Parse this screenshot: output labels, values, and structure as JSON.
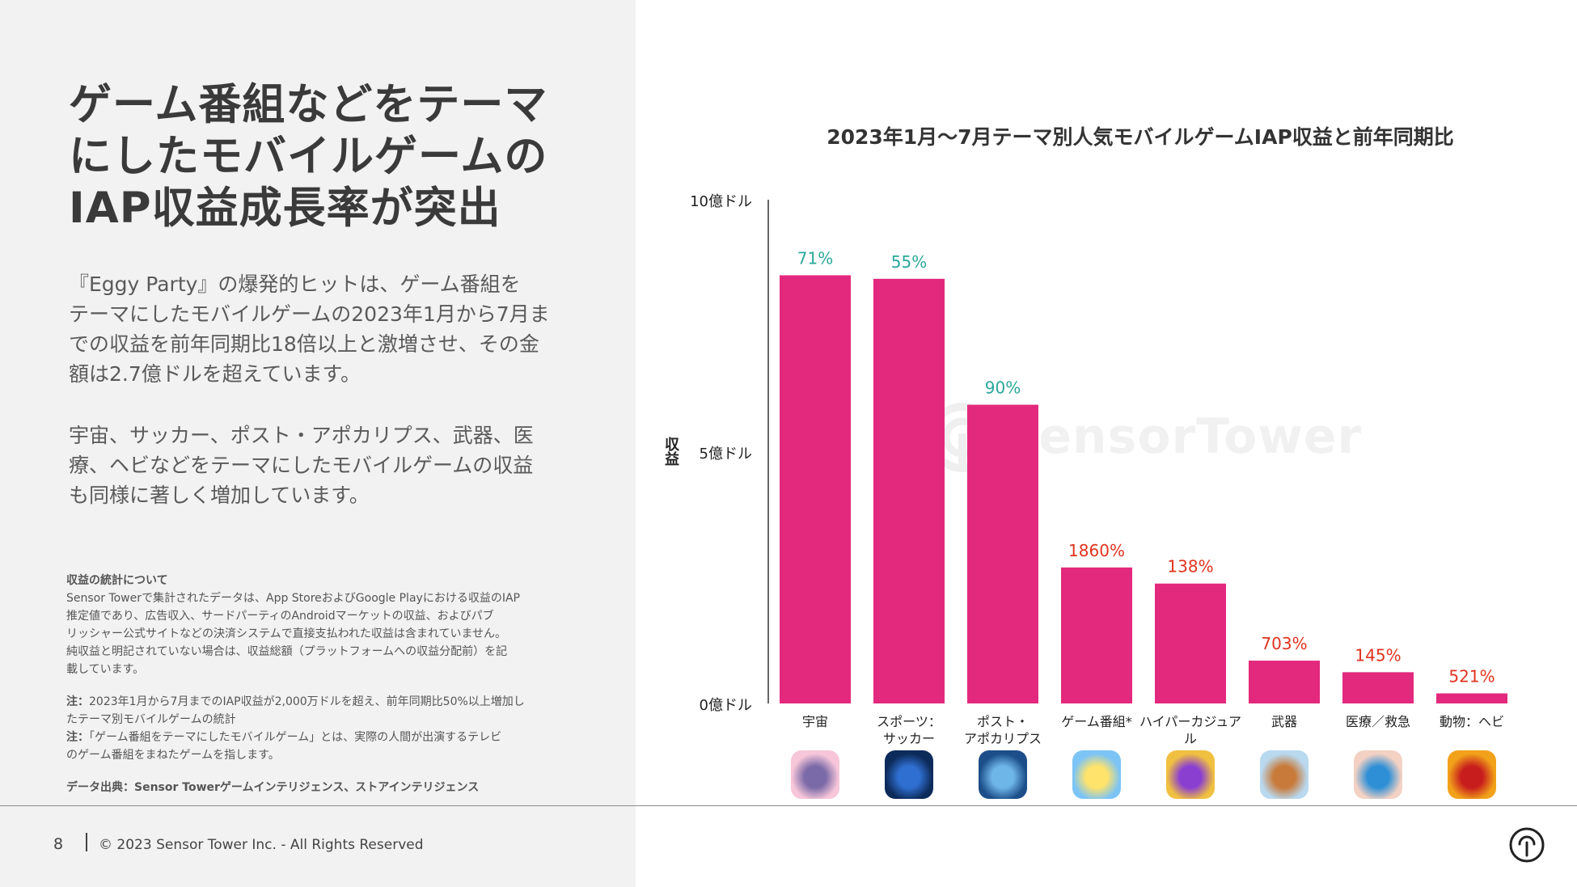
{
  "headline": "ゲーム番組などをテーマ\nにしたモバイルゲームの\nIAP収益成長率が突出",
  "paragraphs": [
    "『Eggy Party』の爆発的ヒットは、ゲーム番組を\nテーマにしたモバイルゲームの2023年1月から7月ま\nでの収益を前年同期比18倍以上と激増させ、その金\n額は2.7億ドルを超えています。",
    "宇宙、サッカー、ポスト・アポカリプス、武器、医\n療、ヘビなどをテーマにしたモバイルゲームの収益\nも同様に著しく増加しています。"
  ],
  "notes": {
    "heading": "収益の統計について",
    "stats_text": "Sensor Towerで集計されたデータは、App StoreおよびGoogle Playにおける収益のIAP\n推定値であり、広告収入、サードパーティのAndroidマーケットの収益、およびパブ\nリッシャー公式サイトなどの決済システムで直接支払われた収益は含まれていません。\n純収益と明記されていない場合は、収益総額（プラットフォームへの収益分配前）を記\n載しています。",
    "note1_label": "注：",
    "note1_text": "2023年1月から7月までのIAP収益が2,000万ドルを超え、前年同期比50%以上増加し\nたテーマ別モバイルゲームの統計",
    "note2_label": "注：",
    "note2_text": "「ゲーム番組をテーマにしたモバイルゲーム」とは、実際の人間が出演するテレビ\nのゲーム番組をまねたゲームを指します。",
    "source": "データ出典：Sensor Towerゲームインテリジェンス、ストアインテリジェンス"
  },
  "footer": {
    "page_number": "8",
    "copyright": "© 2023 Sensor Tower Inc. - All Rights Reserved"
  },
  "watermark_text": "SensorTower",
  "colors": {
    "bar": "#e3297d",
    "growth_teal": "#2aa89a",
    "growth_red": "#e0331f",
    "left_panel_bg": "#f2f2f2"
  },
  "chart_data": {
    "type": "bar",
    "title": "2023年1月〜7月テーマ別人気モバイルゲームIAP収益と前年同期比",
    "ylabel": "収益",
    "xlabel": "",
    "ylim": [
      0,
      1000000000
    ],
    "yticks": [
      {
        "value": 0,
        "label": "0億ドル"
      },
      {
        "value": 500000000,
        "label": "5億ドル"
      },
      {
        "value": 1000000000,
        "label": "10億ドル"
      }
    ],
    "categories": [
      "宇宙",
      "スポーツ：\nサッカー",
      "ポスト・\nアポカリプス",
      "ゲーム番組*",
      "ハイパーカジュアル",
      "武器",
      "医療／救急",
      "動物：ヘビ"
    ],
    "values": [
      850000000,
      843000000,
      593000000,
      270000000,
      238000000,
      85000000,
      62000000,
      20000000
    ],
    "growth_labels": [
      "71%",
      "55%",
      "90%",
      "1860%",
      "138%",
      "703%",
      "145%",
      "521%"
    ],
    "growth_colors": [
      "teal",
      "teal",
      "teal",
      "red",
      "red",
      "red",
      "red",
      "red"
    ],
    "icons": [
      "space-game-icon",
      "soccer-game-icon",
      "post-apocalypse-game-icon",
      "game-show-game-icon",
      "hypercasual-game-icon",
      "weapon-game-icon",
      "medical-game-icon",
      "snake-game-icon"
    ],
    "grid": false,
    "legend": "none"
  }
}
